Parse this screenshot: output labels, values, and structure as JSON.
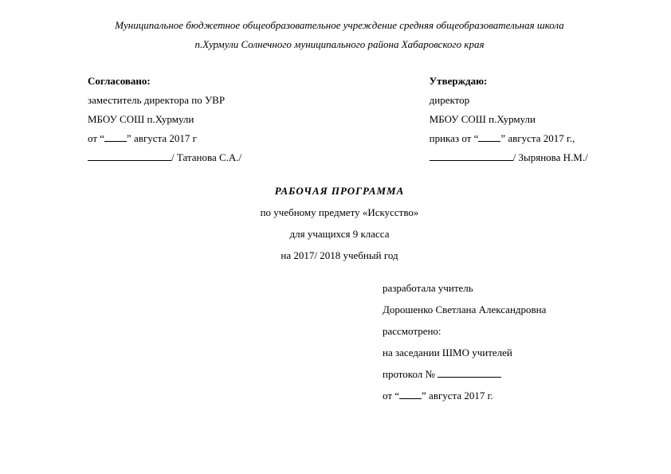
{
  "header": {
    "line1": "Муниципальное бюджетное общеобразовательное учреждение средняя общеобразовательная школа",
    "line2": "п.Хурмули Солнечного муниципального района Хабаровского края"
  },
  "approval": {
    "left": {
      "title": "Согласовано:",
      "position": "заместитель директора по УВР",
      "school": "МБОУ СОШ п.Хурмули",
      "date_prefix": "от “",
      "date_suffix": "” августа 2017 г",
      "sign_suffix": "/ Татанова С.А./"
    },
    "right": {
      "title": "Утверждаю:",
      "position": "директор",
      "school": " МБОУ СОШ п.Хурмули",
      "order_prefix": "приказ от “",
      "order_suffix": "”  августа 2017 г.,",
      "sign_suffix": "/ Зырянова Н.М./"
    }
  },
  "program": {
    "heading": "РАБОЧАЯ  ПРОГРАММА",
    "subject": "по учебному предмету «Искусство»",
    "class": "для учащихся 9 класса",
    "year": "на 2017/ 2018 учебный год"
  },
  "developer": {
    "label": "разработала учитель",
    "name": "Дорошенко Светлана Александровна",
    "reviewed": "рассмотрено:",
    "meeting": "на заседании ШМО учителей",
    "protocol_prefix": "протокол   № ",
    "date_prefix": " от “",
    "date_suffix": "”  августа 2017 г."
  }
}
